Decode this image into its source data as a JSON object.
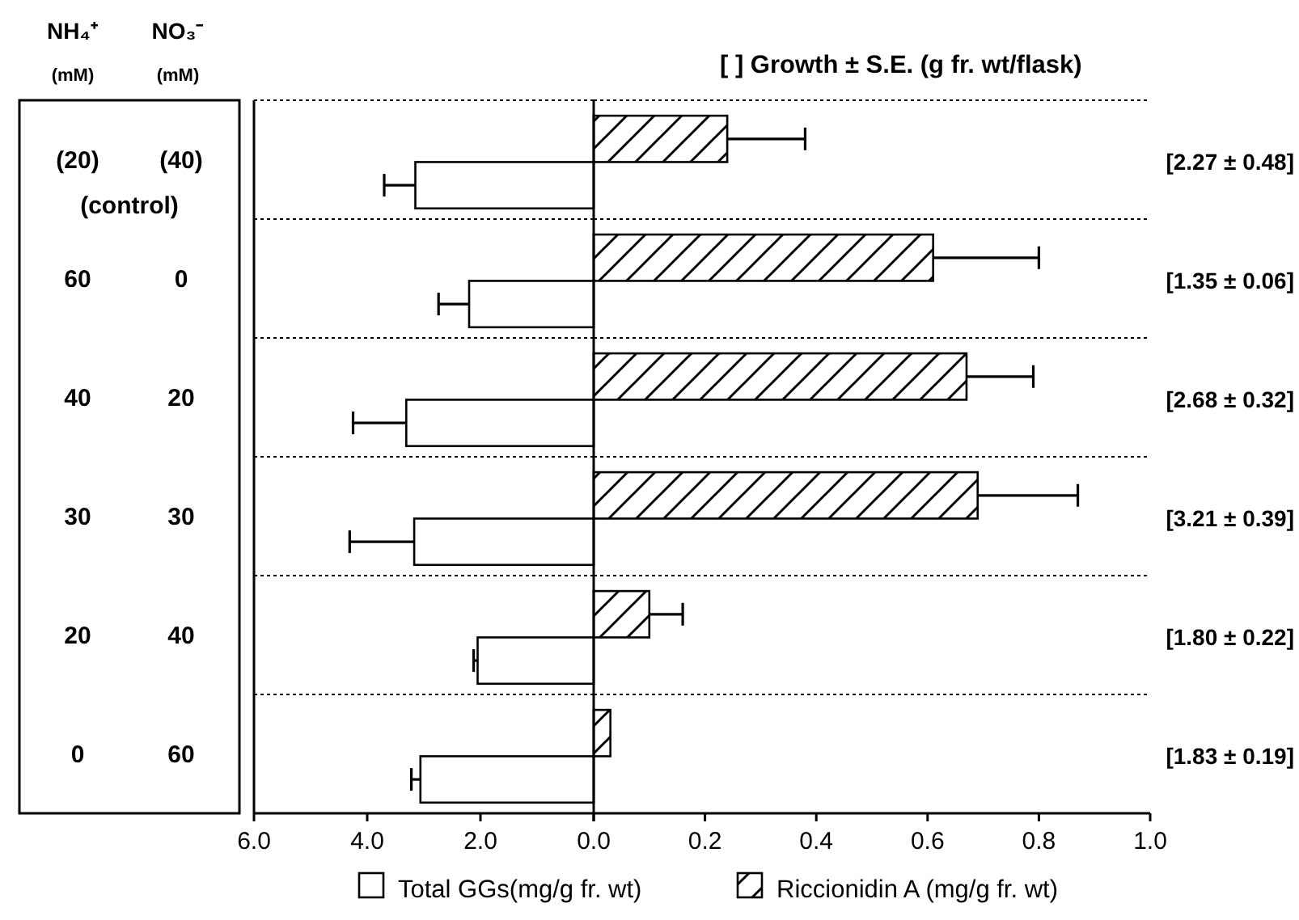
{
  "chart_data": [
    {
      "type": "bar",
      "orientation": "horizontal",
      "categories": [
        "(20) (40) (control)",
        "60 0",
        "40 20",
        "30 30",
        "20 40",
        "0 60"
      ],
      "series": [
        {
          "name": "Total GGs(mg/g  fr. wt)",
          "color": "#ffffff",
          "values": [
            3.15,
            2.2,
            3.31,
            3.17,
            2.05,
            3.06
          ],
          "errors": [
            [
              3.15,
              3.7
            ],
            [
              2.2,
              2.74
            ],
            [
              3.31,
              4.25
            ],
            [
              3.17,
              4.31
            ],
            [
              2.05,
              2.12
            ],
            [
              3.06,
              3.22
            ]
          ]
        }
      ],
      "xlim": [
        6,
        0
      ],
      "xticks": [
        {
          "value": 6,
          "label": "6.0"
        },
        {
          "value": 4,
          "label": "4.0"
        },
        {
          "value": 2,
          "label": "2.0"
        },
        {
          "value": 0,
          "label": "0.0"
        }
      ],
      "annotations": [
        "NH₄⁺ (mM)",
        "NO₃⁻ (mM)"
      ],
      "grid": true,
      "legend": "bottom"
    },
    {
      "type": "bar",
      "orientation": "horizontal",
      "categories": [
        null,
        null,
        null,
        null,
        null,
        null
      ],
      "tick_labels": "x",
      "title": "[ ]  Growth  ± S.E. (g fr. wt/flask)",
      "series": [
        {
          "name": "Riccionidin A (mg/g  fr. wt)",
          "color": "#000000",
          "values": [
            0.24,
            0.61,
            0.67,
            0.69,
            0.1,
            0.03
          ],
          "errors": [
            [
              0.24,
              0.38
            ],
            [
              0.61,
              0.8
            ],
            [
              0.67,
              0.79
            ],
            [
              0.69,
              0.87
            ],
            [
              0.1,
              0.16
            ],
            null
          ]
        }
      ],
      "xlim": [
        0,
        1
      ],
      "xticks": [
        {
          "value": 0,
          "label": null
        },
        {
          "value": 0.2,
          "label": "0.2"
        },
        {
          "value": 0.4,
          "label": "0.4"
        },
        {
          "value": 0.6,
          "label": "0.6"
        },
        {
          "value": 0.8,
          "label": "0.8"
        },
        {
          "value": 1,
          "label": "1.0"
        }
      ],
      "annotations": [
        "[2.27  ± 0.48]",
        "[1.35  ± 0.06]",
        "[2.68  ± 0.32]",
        "[3.21  ± 0.39]",
        "[1.80  ± 0.22]",
        "[1.83  ± 0.19]"
      ],
      "grid": true,
      "legend": "bottom"
    }
  ]
}
